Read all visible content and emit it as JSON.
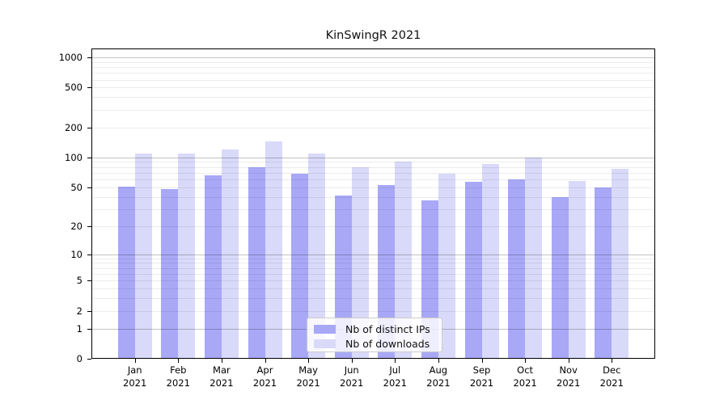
{
  "chart_data": {
    "type": "bar",
    "title": "KinSwingR 2021",
    "categories": [
      "Jan",
      "Feb",
      "Mar",
      "Apr",
      "May",
      "Jun",
      "Jul",
      "Aug",
      "Sep",
      "Oct",
      "Nov",
      "Dec"
    ],
    "category_year": "2021",
    "series": [
      {
        "name": "Nb of distinct IPs",
        "color": "#a8a8f7",
        "values": [
          51,
          48,
          66,
          79,
          69,
          41,
          53,
          37,
          57,
          60,
          40,
          50
        ]
      },
      {
        "name": "Nb of downloads",
        "color": "#d9d9f9",
        "values": [
          110,
          110,
          121,
          144,
          109,
          80,
          90,
          68,
          86,
          100,
          58,
          77
        ]
      }
    ],
    "xlabel": "",
    "ylabel": "",
    "yscale": "log1p",
    "ylim": [
      0,
      1200
    ],
    "yticks": [
      0,
      1,
      2,
      5,
      10,
      20,
      50,
      100,
      200,
      500,
      1000
    ],
    "major_gridlines": [
      1,
      10,
      100,
      1000
    ],
    "minor_grid_subs": [
      2,
      3,
      4,
      5,
      6,
      7,
      8,
      9
    ],
    "grid": true,
    "legend_position": "bottom-center"
  }
}
